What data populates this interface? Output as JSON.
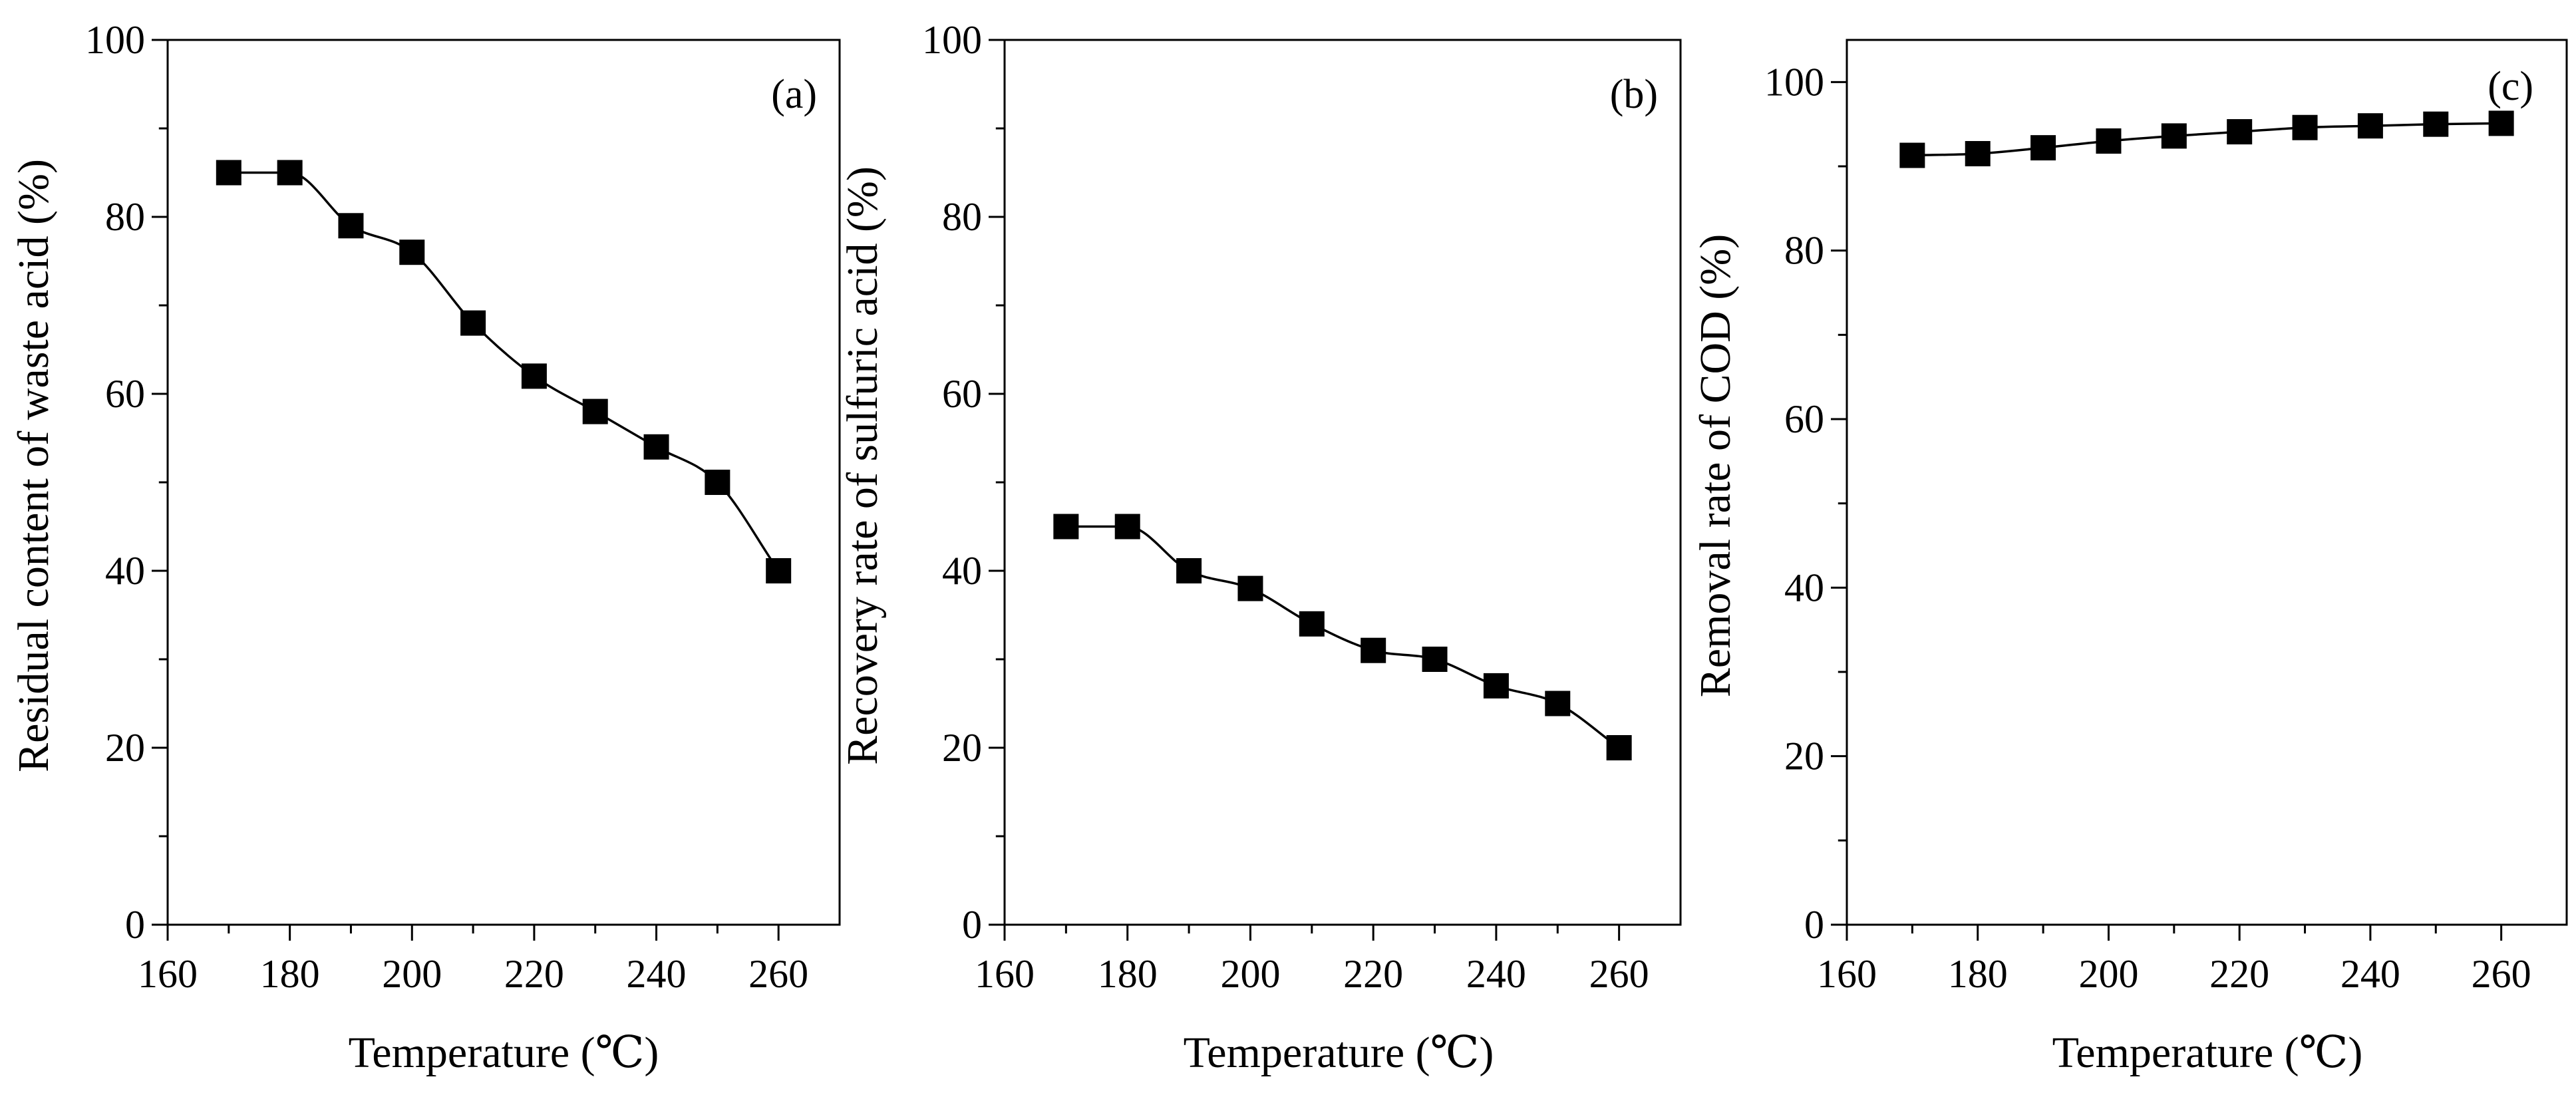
{
  "figure": {
    "panels": [
      "a",
      "b",
      "c"
    ]
  },
  "chart_data": [
    {
      "type": "line",
      "panel_label": "(a)",
      "title": "",
      "xlabel": "Temperature (℃)",
      "ylabel": "Residual content of waste acid (%)",
      "xlim": [
        160,
        270
      ],
      "ylim": [
        0,
        100
      ],
      "xticks": [
        160,
        180,
        200,
        220,
        240,
        260
      ],
      "yticks": [
        0,
        20,
        40,
        60,
        80,
        100
      ],
      "grid": false,
      "marker": "square",
      "color": "#000000",
      "series": [
        {
          "name": "Residual content of waste acid",
          "x": [
            170,
            180,
            190,
            200,
            210,
            220,
            230,
            240,
            250,
            260
          ],
          "values": [
            85,
            85,
            79,
            76,
            68,
            62,
            58,
            54,
            50,
            40
          ]
        }
      ]
    },
    {
      "type": "line",
      "panel_label": "(b)",
      "title": "",
      "xlabel": "Temperature (℃)",
      "ylabel": "Recovery rate of sulfuric acid (%)",
      "xlim": [
        160,
        270
      ],
      "ylim": [
        0,
        100
      ],
      "xticks": [
        160,
        180,
        200,
        220,
        240,
        260
      ],
      "yticks": [
        0,
        20,
        40,
        60,
        80,
        100
      ],
      "grid": false,
      "marker": "square",
      "color": "#000000",
      "series": [
        {
          "name": "Recovery rate of sulfuric acid",
          "x": [
            170,
            180,
            190,
            200,
            210,
            220,
            230,
            240,
            250,
            260
          ],
          "values": [
            45,
            45,
            40,
            38,
            34,
            31,
            30,
            27,
            25,
            20
          ]
        }
      ]
    },
    {
      "type": "line",
      "panel_label": "(c)",
      "title": "",
      "xlabel": "Temperature (℃)",
      "ylabel": "Removal rate of COD (%)",
      "xlim": [
        160,
        270
      ],
      "ylim": [
        0,
        105
      ],
      "xticks": [
        160,
        180,
        200,
        220,
        240,
        260
      ],
      "yticks": [
        0,
        20,
        40,
        60,
        80,
        100
      ],
      "grid": false,
      "marker": "square",
      "color": "#000000",
      "series": [
        {
          "name": "Removal rate of COD",
          "x": [
            170,
            180,
            190,
            200,
            210,
            220,
            230,
            240,
            250,
            260
          ],
          "values": [
            91.3,
            91.5,
            92.2,
            93.0,
            93.6,
            94.1,
            94.6,
            94.8,
            95.0,
            95.1
          ]
        }
      ]
    }
  ]
}
